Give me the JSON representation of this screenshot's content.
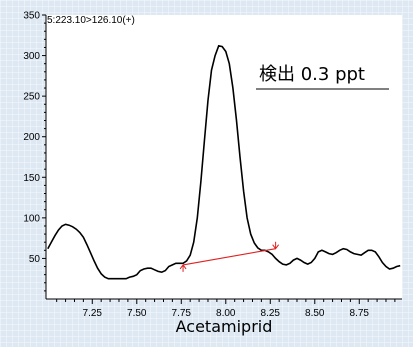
{
  "chart_data": {
    "type": "line",
    "header": "5:223.10>126.10(+)",
    "title": "Acetamiprid",
    "annotation": "検出 0.3 ppt",
    "xlim": [
      6.99,
      8.99
    ],
    "ylim": [
      0,
      350
    ],
    "x_ticks": [
      7.25,
      7.5,
      7.75,
      8.0,
      8.25,
      8.5,
      8.75
    ],
    "x_tick_labels": [
      "7.25",
      "7.50",
      "7.75",
      "8.00",
      "8.25",
      "8.50",
      "8.75"
    ],
    "y_ticks": [
      50,
      100,
      150,
      200,
      250,
      300,
      350
    ],
    "y_tick_labels": [
      "50",
      "100",
      "150",
      "200",
      "250",
      "300",
      "350"
    ],
    "series": [
      {
        "x": [
          7.0,
          7.02,
          7.04,
          7.06,
          7.08,
          7.1,
          7.12,
          7.14,
          7.16,
          7.18,
          7.2,
          7.22,
          7.24,
          7.26,
          7.28,
          7.3,
          7.32,
          7.34,
          7.36,
          7.38,
          7.4,
          7.42,
          7.44,
          7.46,
          7.48,
          7.5,
          7.52,
          7.54,
          7.56,
          7.58,
          7.6,
          7.62,
          7.64,
          7.66,
          7.68,
          7.7,
          7.72,
          7.74,
          7.76,
          7.78,
          7.8,
          7.82,
          7.84,
          7.86,
          7.88,
          7.9,
          7.92,
          7.94,
          7.96,
          7.98,
          8.0,
          8.02,
          8.04,
          8.06,
          8.08,
          8.1,
          8.12,
          8.14,
          8.16,
          8.18,
          8.2,
          8.22,
          8.24,
          8.26,
          8.28,
          8.3,
          8.32,
          8.34,
          8.36,
          8.38,
          8.4,
          8.42,
          8.44,
          8.46,
          8.48,
          8.5,
          8.52,
          8.54,
          8.56,
          8.58,
          8.6,
          8.62,
          8.64,
          8.66,
          8.68,
          8.7,
          8.72,
          8.74,
          8.76,
          8.78,
          8.8,
          8.82,
          8.84,
          8.86,
          8.88,
          8.9,
          8.92,
          8.94,
          8.96,
          8.98
        ],
        "y": [
          62,
          70,
          78,
          85,
          90,
          92,
          91,
          89,
          86,
          82,
          76,
          67,
          57,
          47,
          38,
          31,
          27,
          25,
          25,
          25,
          25,
          25,
          25,
          27,
          28,
          30,
          35,
          37,
          38,
          38,
          36,
          34,
          33,
          35,
          40,
          42,
          44,
          44,
          44,
          47,
          54,
          70,
          100,
          145,
          195,
          245,
          282,
          300,
          312,
          311,
          305,
          290,
          260,
          220,
          175,
          133,
          100,
          80,
          69,
          63,
          60,
          60,
          58,
          55,
          50,
          46,
          43,
          42,
          44,
          48,
          50,
          48,
          45,
          43,
          45,
          50,
          58,
          60,
          58,
          56,
          55,
          57,
          60,
          62,
          61,
          58,
          56,
          55,
          54,
          57,
          60,
          60,
          58,
          52,
          45,
          40,
          37,
          38,
          40,
          41
        ]
      }
    ],
    "baseline_segment": {
      "x": [
        7.76,
        8.28
      ],
      "y": [
        42,
        62
      ]
    },
    "colors": {
      "trace": "#000000",
      "baseline": "#e02020",
      "plot_bg": "#ffffff",
      "page_bg": "#dde8f3"
    }
  }
}
